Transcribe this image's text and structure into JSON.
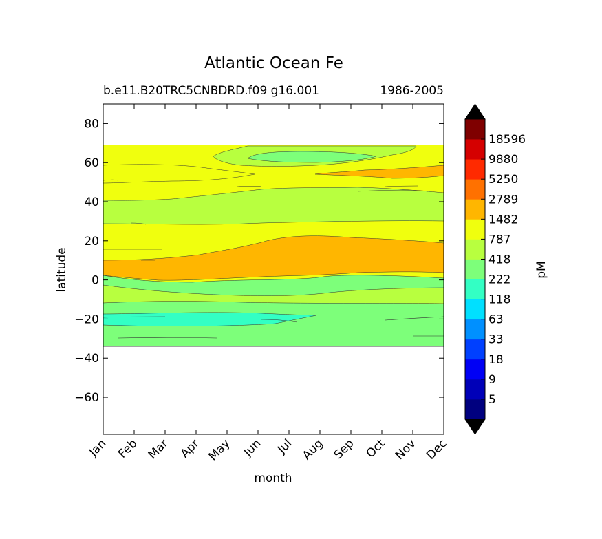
{
  "chart_data": {
    "type": "contourf",
    "title": "Atlantic Ocean Fe",
    "subtitle_left": "b.e11.B20TRC5CNBDRD.f09 g16.001",
    "subtitle_right": "1986-2005",
    "xlabel": "month",
    "ylabel": "latitude",
    "x_ticks": [
      "Jan",
      "Feb",
      "Mar",
      "Apr",
      "May",
      "Jun",
      "Jul",
      "Aug",
      "Sep",
      "Oct",
      "Nov",
      "Dec"
    ],
    "y_ticks": [
      80,
      60,
      40,
      20,
      0,
      -20,
      -40,
      -60
    ],
    "ylim": [
      -79,
      90
    ],
    "data_lat_range": [
      -34,
      69
    ],
    "colorbar": {
      "label": "pM",
      "levels": [
        5,
        9,
        18,
        33,
        63,
        118,
        222,
        418,
        787,
        1482,
        2789,
        5250,
        9880,
        18596
      ],
      "colors": [
        "#00007f",
        "#0000b8",
        "#0000f5",
        "#0040ff",
        "#0090ff",
        "#00e0ff",
        "#33ffc4",
        "#7dff7a",
        "#b8ff3f",
        "#f0ff0e",
        "#ffb600",
        "#ff7100",
        "#ff2a00",
        "#d50000",
        "#7f0000"
      ],
      "extend_under_color": "#000000",
      "extend_over_color": "#000000"
    },
    "bands": [
      {
        "level_range": "418-787",
        "color": "#7dff7a",
        "lat": [
          -34,
          -11
        ]
      },
      {
        "level_range": "222-418",
        "color": "#33ffc4",
        "lat": [
          -24,
          -17
        ]
      },
      {
        "level_range": "787-1482",
        "color": "#b8ff3f",
        "lat": [
          -11,
          -2
        ]
      },
      {
        "level_range": "1482-2789",
        "color": "#f0ff0e",
        "lat": [
          -2,
          30
        ]
      },
      {
        "level_range": "2789-5250",
        "color": "#ffb600",
        "lat": [
          1,
          22
        ]
      },
      {
        "level_range": "787-1482",
        "color": "#b8ff3f",
        "lat": [
          30,
          50
        ]
      },
      {
        "level_range": "1482-2789",
        "color": "#f0ff0e",
        "lat": [
          50,
          69
        ]
      },
      {
        "level_range": "2789-5250",
        "color": "#ffb600",
        "lat": [
          51,
          59
        ]
      },
      {
        "level_range": "787-1482",
        "color": "#b8ff3f",
        "lat": [
          59,
          68
        ]
      },
      {
        "level_range": "418-787",
        "color": "#7dff7a",
        "lat": [
          60,
          66
        ]
      }
    ]
  }
}
